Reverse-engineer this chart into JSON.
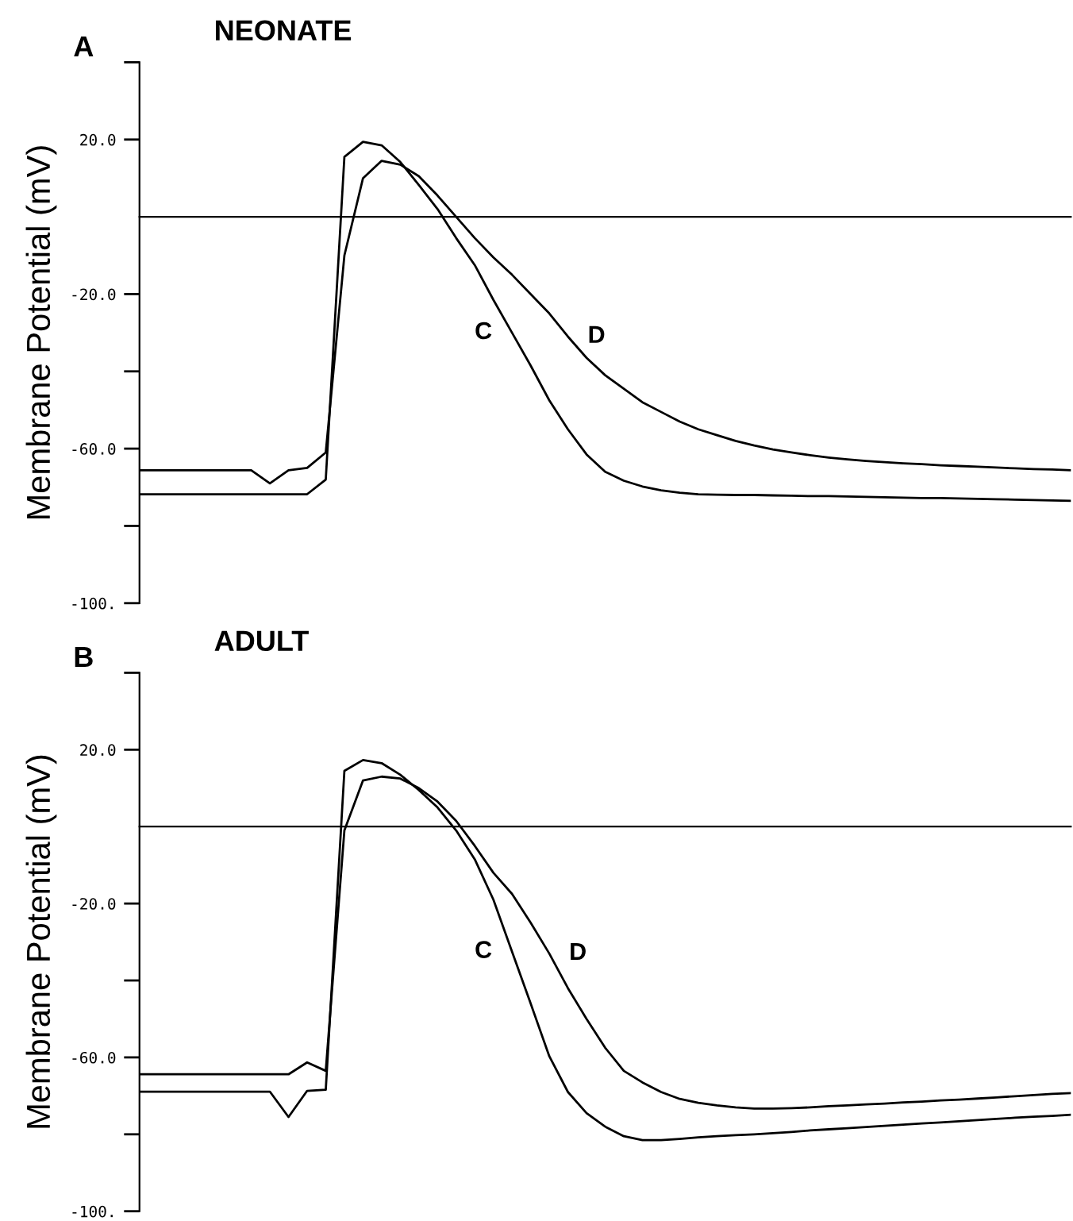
{
  "chart_data": [
    {
      "type": "line",
      "title": "NEONATE",
      "annotations": [
        "A"
      ],
      "ylabel": "Membrane Potential (mV)",
      "categories": [
        null,
        null,
        null,
        null,
        null,
        null,
        null,
        null,
        null,
        null,
        null,
        null,
        null,
        null,
        null,
        null,
        null,
        null,
        null,
        null,
        null,
        null,
        null,
        null,
        null,
        null,
        null,
        null,
        null,
        null,
        null,
        null,
        null,
        null,
        null,
        null,
        null,
        null,
        null,
        null,
        null,
        null,
        null,
        null,
        null,
        null,
        null,
        null,
        null,
        null,
        null
      ],
      "ylim": [
        -100,
        40
      ],
      "yticks": [
        {
          "value": 40,
          "label": null
        },
        {
          "value": 20,
          "label": "20.0"
        },
        {
          "value": -20,
          "label": "-20.0"
        },
        {
          "value": -40,
          "label": null
        },
        {
          "value": -60,
          "label": "-60.0"
        },
        {
          "value": -80,
          "label": null
        },
        {
          "value": -100,
          "label": "-100."
        }
      ],
      "grid": false,
      "legend": false,
      "marker": "none",
      "line_style": "solid",
      "series": [
        {
          "name": "C",
          "color": "#000000",
          "values": [
            -71.8,
            -71.8,
            -71.8,
            -71.8,
            -71.8,
            -71.8,
            -71.8,
            -71.8,
            -71.8,
            -71.8,
            -68,
            15.5,
            19.4,
            18.5,
            14.2,
            8.2,
            2,
            -5.5,
            -12.5,
            -21.5,
            -30,
            -38.5,
            -47.5,
            -55,
            -61.5,
            -66,
            -68.3,
            -69.8,
            -70.8,
            -71.4,
            -71.8,
            -71.9,
            -72,
            -72,
            -72.1,
            -72.2,
            -72.3,
            -72.3,
            -72.4,
            -72.5,
            -72.6,
            -72.7,
            -72.8,
            -72.8,
            -72.9,
            -73,
            -73.1,
            -73.2,
            -73.3,
            -73.4,
            -73.5
          ]
        },
        {
          "name": "D",
          "color": "#000000",
          "values": [
            -65.6,
            -65.6,
            -65.6,
            -65.6,
            -65.6,
            -65.6,
            -65.6,
            -69,
            -65.6,
            -65,
            -61,
            -10,
            10,
            14.5,
            13.5,
            10.5,
            5.5,
            0,
            -5.5,
            -10.5,
            -15,
            -20,
            -25,
            -31,
            -36.5,
            -41,
            -44.5,
            -48,
            -50.5,
            -53,
            -55,
            -56.5,
            -58,
            -59.2,
            -60.2,
            -61,
            -61.7,
            -62.3,
            -62.8,
            -63.2,
            -63.5,
            -63.8,
            -64,
            -64.3,
            -64.5,
            -64.7,
            -64.9,
            -65.1,
            -65.3,
            -65.4,
            -65.6
          ]
        }
      ]
    },
    {
      "type": "line",
      "title": "ADULT",
      "annotations": [
        "B"
      ],
      "ylabel": "Membrane Potential (mV)",
      "categories": [
        null,
        null,
        null,
        null,
        null,
        null,
        null,
        null,
        null,
        null,
        null,
        null,
        null,
        null,
        null,
        null,
        null,
        null,
        null,
        null,
        null,
        null,
        null,
        null,
        null,
        null,
        null,
        null,
        null,
        null,
        null,
        null,
        null,
        null,
        null,
        null,
        null,
        null,
        null,
        null,
        null,
        null,
        null,
        null,
        null,
        null,
        null,
        null,
        null,
        null,
        null
      ],
      "ylim": [
        -100,
        40
      ],
      "yticks": [
        {
          "value": 40,
          "label": null
        },
        {
          "value": 20,
          "label": "20.0"
        },
        {
          "value": -20,
          "label": "-20.0"
        },
        {
          "value": -40,
          "label": null
        },
        {
          "value": -60,
          "label": "-60.0"
        },
        {
          "value": -80,
          "label": null
        },
        {
          "value": -100,
          "label": "-100."
        }
      ],
      "grid": false,
      "legend": false,
      "marker": "none",
      "line_style": "solid",
      "series": [
        {
          "name": "C",
          "color": "#000000",
          "values": [
            -68.9,
            -68.9,
            -68.9,
            -68.9,
            -68.9,
            -68.9,
            -68.9,
            -68.9,
            -75.5,
            -68.7,
            -68.4,
            14.5,
            17.3,
            16.5,
            13.5,
            9.5,
            5,
            -1,
            -8.5,
            -19,
            -32.5,
            -46,
            -59.7,
            -69,
            -74.5,
            -78,
            -80.5,
            -81.5,
            -81.5,
            -81.2,
            -80.8,
            -80.5,
            -80.2,
            -80,
            -79.7,
            -79.4,
            -79,
            -78.7,
            -78.4,
            -78.1,
            -77.8,
            -77.5,
            -77.2,
            -76.9,
            -76.6,
            -76.3,
            -76,
            -75.7,
            -75.4,
            -75.2,
            -74.9
          ]
        },
        {
          "name": "D",
          "color": "#000000",
          "values": [
            -64.4,
            -64.4,
            -64.4,
            -64.4,
            -64.4,
            -64.4,
            -64.4,
            -64.4,
            -64.4,
            -61.3,
            -63.5,
            -1,
            12,
            13,
            12.5,
            10,
            6.5,
            1.5,
            -5,
            -12,
            -17.5,
            -25,
            -33,
            -42,
            -50,
            -57.5,
            -63.5,
            -66.5,
            -69,
            -70.8,
            -71.8,
            -72.5,
            -73,
            -73.3,
            -73.3,
            -73.2,
            -73,
            -72.7,
            -72.5,
            -72.2,
            -72,
            -71.7,
            -71.5,
            -71.2,
            -71,
            -70.7,
            -70.4,
            -70.1,
            -69.8,
            -69.5,
            -69.3
          ]
        }
      ]
    }
  ]
}
